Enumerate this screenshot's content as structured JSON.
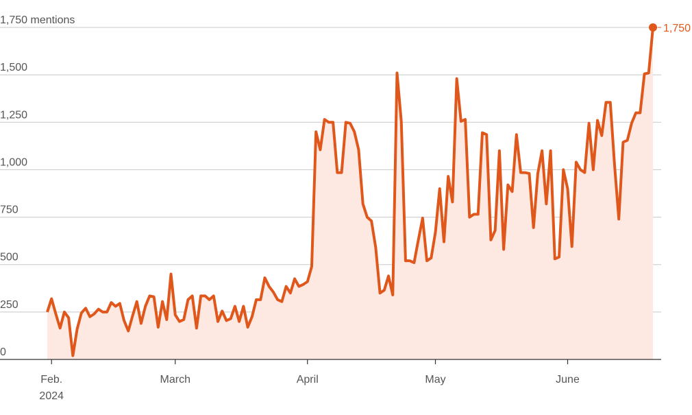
{
  "chart_data": {
    "type": "line",
    "categories": [
      null,
      "Feb.",
      null,
      null,
      null,
      null,
      null,
      null,
      null,
      null,
      null,
      null,
      null,
      null,
      null,
      null,
      null,
      null,
      null,
      null,
      null,
      null,
      null,
      null,
      null,
      null,
      null,
      null,
      null,
      null,
      "March",
      null,
      null,
      null,
      null,
      null,
      null,
      null,
      null,
      null,
      null,
      null,
      null,
      null,
      null,
      null,
      null,
      null,
      null,
      null,
      null,
      null,
      null,
      null,
      null,
      null,
      null,
      null,
      null,
      null,
      null,
      "April",
      null,
      null,
      null,
      null,
      null,
      null,
      null,
      null,
      null,
      null,
      null,
      null,
      null,
      null,
      null,
      null,
      null,
      null,
      null,
      null,
      null,
      null,
      null,
      null,
      null,
      null,
      null,
      null,
      null,
      "May",
      null,
      null,
      null,
      null,
      null,
      null,
      null,
      null,
      null,
      null,
      null,
      null,
      null,
      null,
      null,
      null,
      null,
      null,
      null,
      null,
      null,
      null,
      null,
      null,
      null,
      null,
      null,
      null,
      null,
      null,
      "June",
      null,
      null,
      null,
      null,
      null,
      null,
      null,
      null,
      null,
      null,
      null,
      null,
      null,
      null,
      null,
      null,
      null,
      null,
      null,
      null
    ],
    "x_sublabel": "2024",
    "series": [
      {
        "color": "#e0571c",
        "fill": "#fde9e2",
        "values": [
          250,
          320,
          240,
          165,
          250,
          220,
          20,
          160,
          245,
          270,
          225,
          240,
          265,
          250,
          250,
          300,
          280,
          295,
          205,
          150,
          230,
          305,
          190,
          280,
          335,
          330,
          170,
          305,
          210,
          450,
          235,
          200,
          210,
          315,
          335,
          165,
          335,
          335,
          315,
          335,
          200,
          255,
          205,
          215,
          280,
          200,
          280,
          170,
          225,
          315,
          315,
          430,
          385,
          355,
          315,
          305,
          385,
          350,
          425,
          385,
          395,
          410,
          490,
          1200,
          1105,
          1265,
          1250,
          1250,
          985,
          985,
          1250,
          1245,
          1200,
          1105,
          820,
          750,
          730,
          590,
          350,
          365,
          440,
          340,
          1510,
          1255,
          520,
          520,
          510,
          630,
          745,
          520,
          535,
          670,
          900,
          620,
          965,
          830,
          1480,
          1255,
          1265,
          750,
          765,
          765,
          1195,
          1185,
          630,
          680,
          1100,
          580,
          920,
          885,
          1185,
          985,
          985,
          980,
          695,
          980,
          1100,
          820,
          1100,
          530,
          540,
          1000,
          900,
          595,
          1040,
          1000,
          985,
          1245,
          1000,
          1260,
          1180,
          1355,
          1355,
          1025,
          740,
          1145,
          1155,
          1245,
          1300,
          1300,
          1505,
          1510,
          1750
        ],
        "value_labels": [
          null,
          null,
          null,
          null,
          null,
          null,
          null,
          null,
          null,
          null,
          null,
          null,
          null,
          null,
          null,
          null,
          null,
          null,
          null,
          null,
          null,
          null,
          null,
          null,
          null,
          null,
          null,
          null,
          null,
          null,
          null,
          null,
          null,
          null,
          null,
          null,
          null,
          null,
          null,
          null,
          null,
          null,
          null,
          null,
          null,
          null,
          null,
          null,
          null,
          null,
          null,
          null,
          null,
          null,
          null,
          null,
          null,
          null,
          null,
          null,
          null,
          null,
          null,
          null,
          null,
          null,
          null,
          null,
          null,
          null,
          null,
          null,
          null,
          null,
          null,
          null,
          null,
          null,
          null,
          null,
          null,
          null,
          null,
          null,
          null,
          null,
          null,
          null,
          null,
          null,
          null,
          null,
          null,
          null,
          null,
          null,
          null,
          null,
          null,
          null,
          null,
          null,
          null,
          null,
          null,
          null,
          null,
          null,
          null,
          null,
          null,
          null,
          null,
          null,
          null,
          null,
          null,
          null,
          null,
          null,
          null,
          null,
          null,
          null,
          null,
          null,
          null,
          null,
          null,
          null,
          null,
          null,
          null,
          null,
          null,
          null,
          null,
          null,
          null,
          null,
          null,
          null,
          "1,750"
        ]
      }
    ],
    "ylim": [
      0,
      1750
    ],
    "yticks": [
      0,
      250,
      500,
      750,
      {
        "value": 1000,
        "label": "1,000"
      },
      {
        "value": 1250,
        "label": "1,250"
      },
      {
        "value": 1500,
        "label": "1,500"
      },
      {
        "value": 1750,
        "label": "1,750 mentions"
      }
    ],
    "grid": true
  }
}
